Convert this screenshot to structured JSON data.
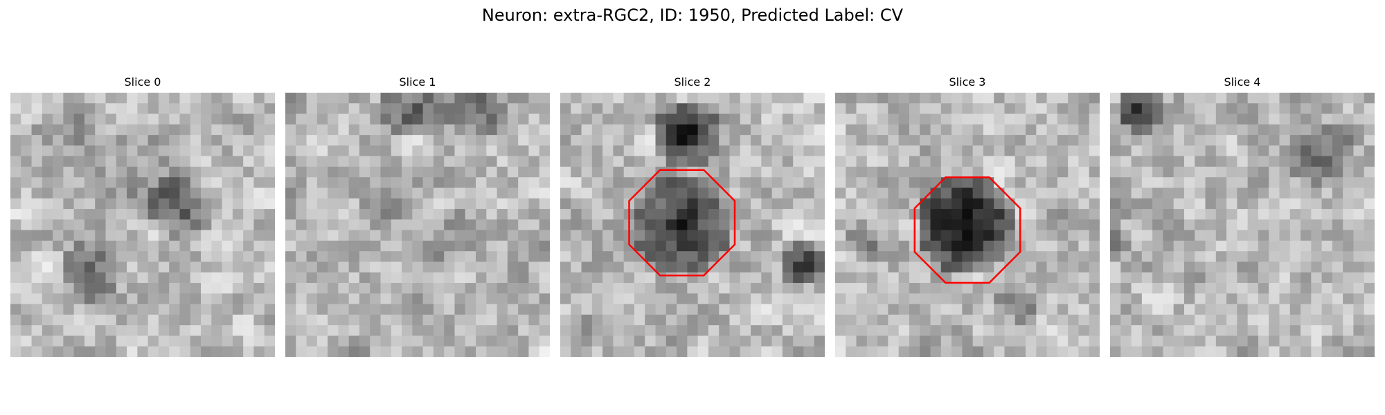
{
  "figure": {
    "title": "Neuron: extra-RGC2, ID: 1950, Predicted Label: CV"
  },
  "image": {
    "colormap": "gray",
    "grid_size": 25,
    "roi_color": "#ff0000"
  },
  "slices": [
    {
      "title": "Slice 0",
      "has_roi": false,
      "seed": 11
    },
    {
      "title": "Slice 1",
      "has_roi": false,
      "seed": 23
    },
    {
      "title": "Slice 2",
      "has_roi": true,
      "seed": 37
    },
    {
      "title": "Slice 3",
      "has_roi": true,
      "seed": 53
    },
    {
      "title": "Slice 4",
      "has_roi": false,
      "seed": 71
    }
  ]
}
